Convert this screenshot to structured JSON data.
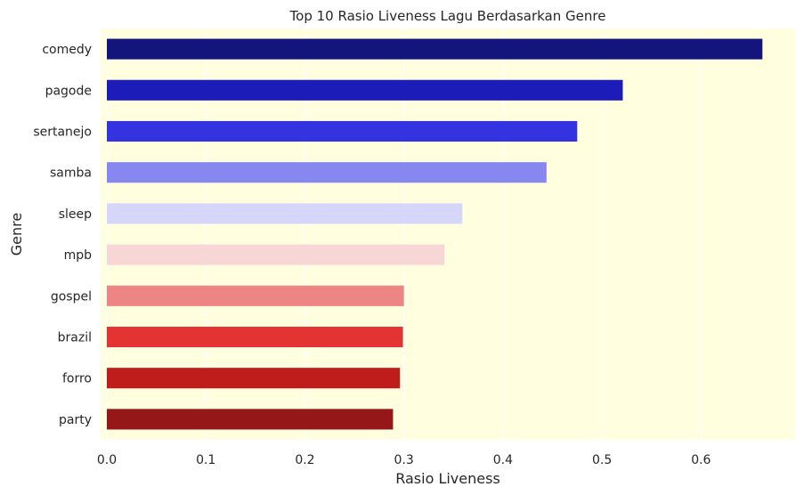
{
  "chart_data": {
    "type": "bar",
    "orientation": "horizontal",
    "title": "Top 10 Rasio Liveness Lagu Berdasarkan Genre",
    "xlabel": "Rasio Liveness",
    "ylabel": "Genre",
    "categories": [
      "comedy",
      "pagode",
      "sertanejo",
      "samba",
      "sleep",
      "mpb",
      "gospel",
      "brazil",
      "forro",
      "party"
    ],
    "values": [
      0.662,
      0.521,
      0.475,
      0.444,
      0.359,
      0.341,
      0.3,
      0.299,
      0.296,
      0.289
    ],
    "colors": [
      "#14147d",
      "#1c1cb8",
      "#3333e0",
      "#8787f0",
      "#d6d6fa",
      "#f7d6d6",
      "#ee8585",
      "#e33333",
      "#bf1c1c",
      "#961717"
    ],
    "xlim": [
      0,
      0.695
    ],
    "xticks": [
      "0.0",
      "0.1",
      "0.2",
      "0.3",
      "0.4",
      "0.5",
      "0.6"
    ],
    "background": "#ffffe0",
    "grid": true
  }
}
